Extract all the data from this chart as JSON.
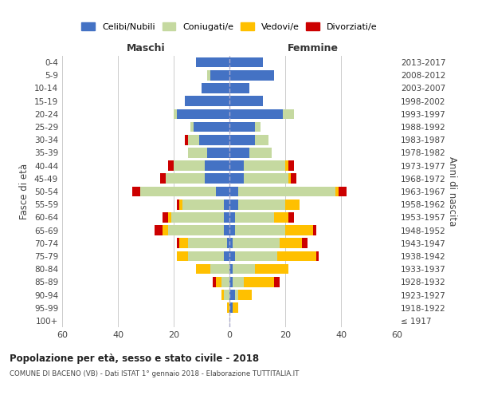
{
  "age_groups": [
    "100+",
    "95-99",
    "90-94",
    "85-89",
    "80-84",
    "75-79",
    "70-74",
    "65-69",
    "60-64",
    "55-59",
    "50-54",
    "45-49",
    "40-44",
    "35-39",
    "30-34",
    "25-29",
    "20-24",
    "15-19",
    "10-14",
    "5-9",
    "0-4"
  ],
  "birth_years": [
    "≤ 1917",
    "1918-1922",
    "1923-1927",
    "1928-1932",
    "1933-1937",
    "1938-1942",
    "1943-1947",
    "1948-1952",
    "1953-1957",
    "1958-1962",
    "1963-1967",
    "1968-1972",
    "1973-1977",
    "1978-1982",
    "1983-1987",
    "1988-1992",
    "1993-1997",
    "1998-2002",
    "2003-2007",
    "2008-2012",
    "2013-2017"
  ],
  "colors": {
    "celibi": "#4472c4",
    "coniugati": "#c5d9a0",
    "vedovi": "#ffc000",
    "divorziati": "#cc0000"
  },
  "maschi": {
    "celibi": [
      0,
      0,
      0,
      0,
      0,
      2,
      1,
      2,
      2,
      2,
      5,
      9,
      9,
      8,
      11,
      13,
      19,
      16,
      10,
      7,
      12
    ],
    "coniugati": [
      0,
      0,
      2,
      3,
      7,
      13,
      14,
      20,
      19,
      15,
      27,
      14,
      11,
      7,
      4,
      1,
      1,
      0,
      0,
      1,
      0
    ],
    "vedovi": [
      0,
      1,
      1,
      2,
      5,
      4,
      3,
      2,
      1,
      1,
      0,
      0,
      0,
      0,
      0,
      0,
      0,
      0,
      0,
      0,
      0
    ],
    "divorziati": [
      0,
      0,
      0,
      1,
      0,
      0,
      1,
      3,
      2,
      1,
      3,
      2,
      2,
      0,
      1,
      0,
      0,
      0,
      0,
      0,
      0
    ]
  },
  "femmine": {
    "celibi": [
      0,
      1,
      2,
      1,
      1,
      2,
      1,
      2,
      2,
      3,
      3,
      5,
      5,
      7,
      9,
      9,
      19,
      12,
      7,
      16,
      12
    ],
    "coniugati": [
      0,
      0,
      1,
      4,
      8,
      15,
      17,
      18,
      14,
      17,
      35,
      16,
      15,
      8,
      5,
      2,
      4,
      0,
      0,
      0,
      0
    ],
    "vedovi": [
      0,
      2,
      5,
      11,
      12,
      14,
      8,
      10,
      5,
      5,
      1,
      1,
      1,
      0,
      0,
      0,
      0,
      0,
      0,
      0,
      0
    ],
    "divorziati": [
      0,
      0,
      0,
      2,
      0,
      1,
      2,
      1,
      2,
      0,
      3,
      2,
      2,
      0,
      0,
      0,
      0,
      0,
      0,
      0,
      0
    ]
  },
  "xlim": 60,
  "title": "Popolazione per età, sesso e stato civile - 2018",
  "subtitle": "COMUNE DI BACENO (VB) - Dati ISTAT 1° gennaio 2018 - Elaborazione TUTTITALIA.IT",
  "ylabel": "Fasce di età",
  "ylabel_right": "Anni di nascita",
  "xlabel_left": "Maschi",
  "xlabel_right": "Femmine",
  "legend_labels": [
    "Celibi/Nubili",
    "Coniugati/e",
    "Vedovi/e",
    "Divorziati/e"
  ],
  "background_color": "#ffffff",
  "grid_color": "#cccccc"
}
